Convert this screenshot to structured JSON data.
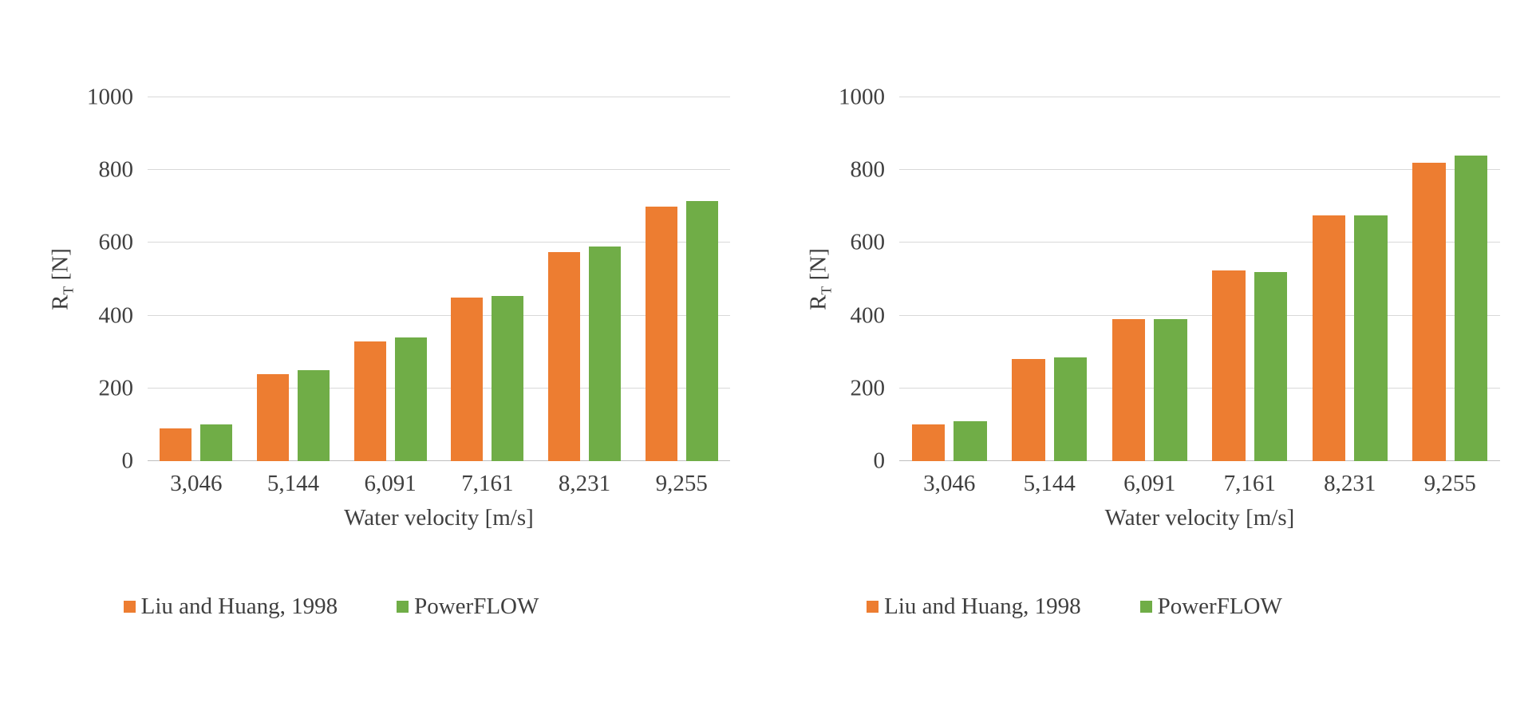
{
  "figure": {
    "background": "#FFFFFF",
    "text_color": "#3F3F3F",
    "gridline_color": "#D9D9D9",
    "axis_line_color": "#BFBFBF"
  },
  "chart_data": [
    {
      "type": "bar",
      "title": "",
      "categories": [
        "3,046",
        "5,144",
        "6,091",
        "7,161",
        "8,231",
        "9,255"
      ],
      "series": [
        {
          "name": "Liu and Huang, 1998",
          "color": "#ED7D31",
          "values": [
            90,
            240,
            330,
            450,
            575,
            700
          ]
        },
        {
          "name": "PowerFLOW",
          "color": "#70AD47",
          "values": [
            100,
            250,
            340,
            455,
            590,
            715
          ]
        }
      ],
      "xlabel": "Water velocity [m/s]",
      "ylabel": "RT [N]",
      "ylabel_parts": {
        "base": "R",
        "subscript": "T",
        "unit": " [N]"
      },
      "ylim": [
        0,
        1000
      ],
      "ytick_step": 200,
      "grid": true,
      "legend_position": "bottom"
    },
    {
      "type": "bar",
      "title": "",
      "categories": [
        "3,046",
        "5,144",
        "6,091",
        "7,161",
        "8,231",
        "9,255"
      ],
      "series": [
        {
          "name": "Liu and Huang, 1998",
          "color": "#ED7D31",
          "values": [
            100,
            280,
            390,
            525,
            675,
            820
          ]
        },
        {
          "name": "PowerFLOW",
          "color": "#70AD47",
          "values": [
            110,
            285,
            390,
            520,
            675,
            840
          ]
        }
      ],
      "xlabel": "Water velocity [m/s]",
      "ylabel": "RT [N]",
      "ylabel_parts": {
        "base": "R",
        "subscript": "T",
        "unit": " [N]"
      },
      "ylim": [
        0,
        1000
      ],
      "ytick_step": 200,
      "grid": true,
      "legend_position": "bottom"
    }
  ]
}
